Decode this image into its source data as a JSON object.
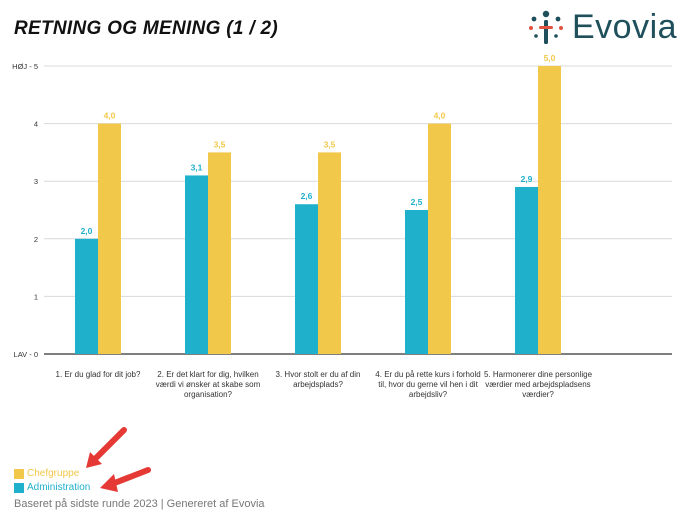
{
  "header": {
    "title": "RETNING OG MENING (1 / 2)"
  },
  "logo": {
    "text": "Evovia",
    "icon": "evovia-figure-icon"
  },
  "chart_data": {
    "type": "bar",
    "categories": [
      "1. Er du glad for dit job?",
      "2. Er det klart for dig, hvilken værdi vi ønsker at skabe som organisation?",
      "3. Hvor stolt er du af din arbejdsplads?",
      "4. Er du på rette kurs i forhold til, hvor du gerne vil hen i dit arbejdsliv?",
      "5. Harmonerer dine personlige værdier med arbejdspladsens værdier?"
    ],
    "series": [
      {
        "name": "Administration",
        "color": "#1fb0cc",
        "values": [
          2.0,
          3.1,
          2.6,
          2.5,
          2.9
        ],
        "labels": [
          "2,0",
          "3,1",
          "2,6",
          "2,5",
          "2,9"
        ]
      },
      {
        "name": "Chefgruppe",
        "color": "#f2c84b",
        "values": [
          4.0,
          3.5,
          3.5,
          4.0,
          5.0
        ],
        "labels": [
          "4,0",
          "3,5",
          "3,5",
          "4,0",
          "5,0"
        ]
      }
    ],
    "yticks": [
      "LAV - 0",
      "1",
      "2",
      "3",
      "4",
      "HØJ - 5"
    ],
    "ylim": [
      0,
      5
    ],
    "grid": true,
    "legend": [
      {
        "name": "Chefgruppe",
        "color": "#f2c84b"
      },
      {
        "name": "Administration",
        "color": "#1fb0cc"
      }
    ],
    "legend_position": "bottom-left"
  },
  "annotations": {
    "arrow_color": "#e53935"
  },
  "footer": {
    "text": "Baseret på sidste runde 2023 | Genereret af Evovia"
  }
}
